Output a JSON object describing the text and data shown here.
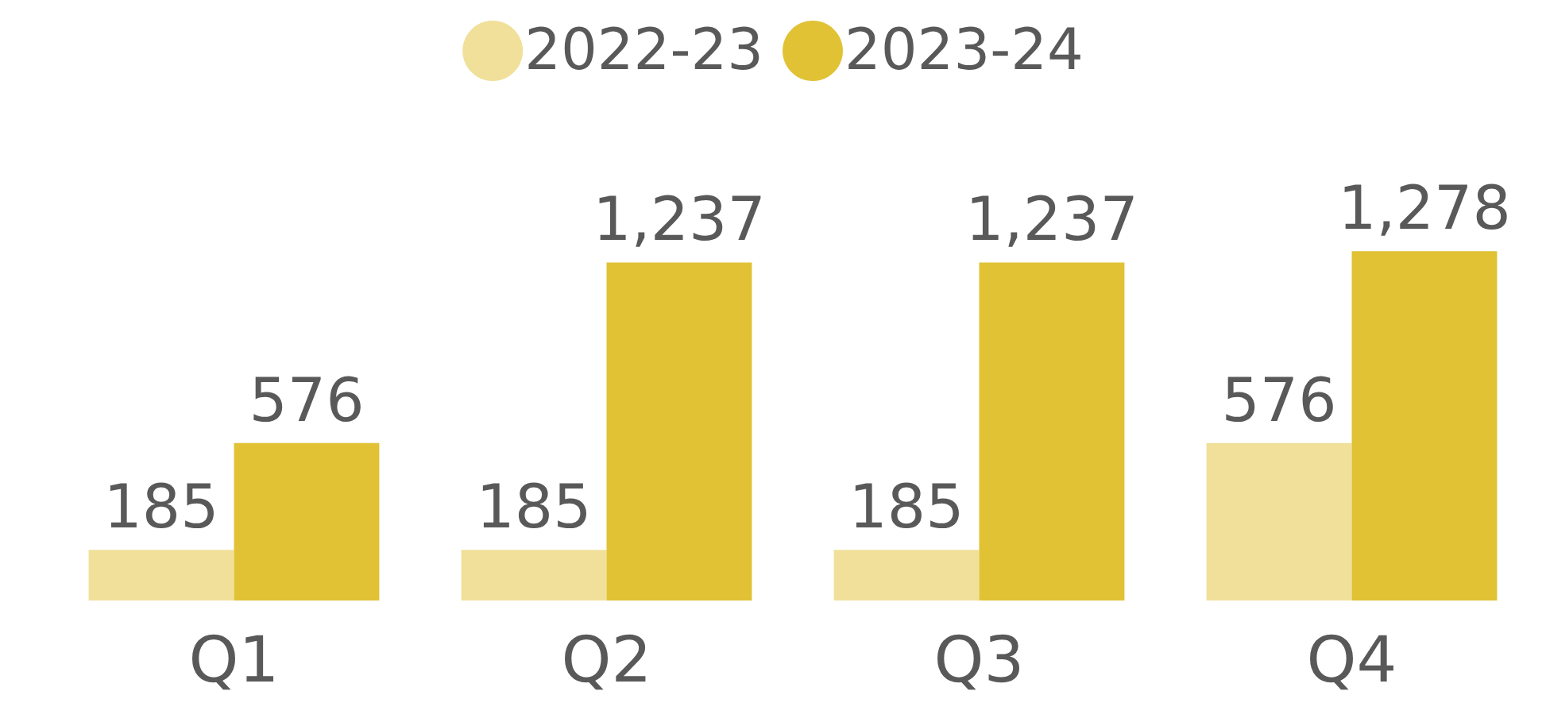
{
  "chart_data": {
    "type": "bar",
    "categories": [
      "Q1",
      "Q2",
      "Q3",
      "Q4"
    ],
    "series": [
      {
        "name": "2022-23",
        "color": "#f0e09a",
        "values": [
          185,
          185,
          185,
          576
        ],
        "value_labels": [
          "185",
          "185",
          "185",
          "576"
        ]
      },
      {
        "name": "2023-24",
        "color": "#e0c234",
        "values": [
          576,
          1237,
          1237,
          1278
        ],
        "value_labels": [
          "576",
          "1,237",
          "1,237",
          "1,278"
        ]
      }
    ],
    "legend": "top"
  }
}
